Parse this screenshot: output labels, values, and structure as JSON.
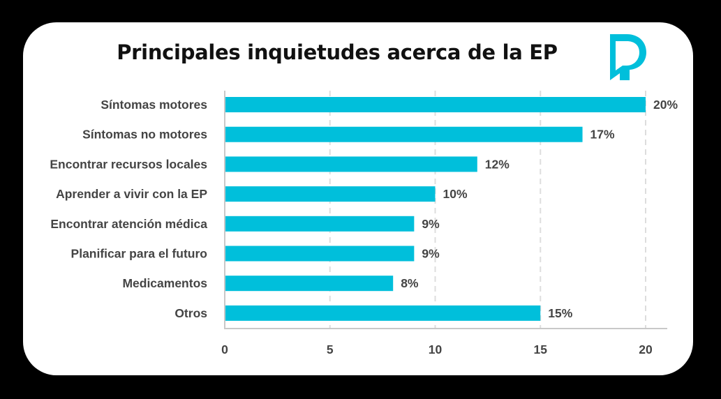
{
  "chart_data": {
    "type": "bar",
    "orientation": "horizontal",
    "title": "Principales inquietudes acerca de la EP",
    "categories": [
      "Síntomas motores",
      "Síntomas no motores",
      "Encontrar recursos locales",
      "Aprender a vivir con la EP",
      "Encontrar atención médica",
      "Planificar para el futuro",
      "Medicamentos",
      "Otros"
    ],
    "values": [
      20,
      17,
      12,
      10,
      9,
      9,
      8,
      15
    ],
    "data_labels": [
      "20%",
      "17%",
      "12%",
      "10%",
      "9%",
      "9%",
      "8%",
      "15%"
    ],
    "xlabel": "",
    "ylabel": "",
    "xlim": [
      0,
      20
    ],
    "xticks": [
      0,
      5,
      10,
      15,
      20
    ],
    "xtick_labels": [
      "0",
      "5",
      "10",
      "15",
      "20"
    ],
    "grid": "vertical dashed",
    "legend": "none",
    "bar_color": "#00BFDB"
  },
  "logo": {
    "name": "parkinson-foundation-logo",
    "color": "#00BFDB"
  },
  "colors": {
    "background": "#000000",
    "card": "#FFFFFF",
    "text": "#444444",
    "title": "#111111",
    "grid": "#DDDDDD",
    "axis": "#C8C8C8"
  }
}
